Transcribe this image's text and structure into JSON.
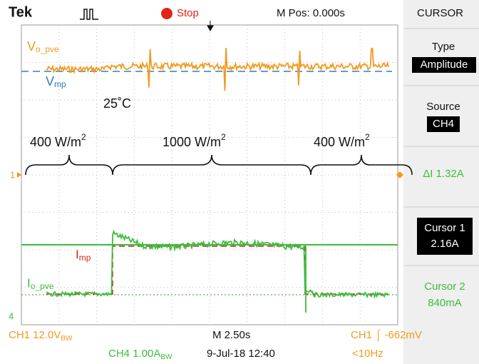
{
  "header": {
    "brand": "Tek",
    "state": "Stop",
    "position": "M Pos: 0.000s",
    "menu": "CURSOR"
  },
  "panel": {
    "type_label": "Type",
    "type_value": "Amplitude",
    "source_label": "Source",
    "source_value": "CH4",
    "delta": "ΔI 1.32A",
    "cursor1_label": "Cursor 1",
    "cursor1_value": "2.16A",
    "cursor2_label": "Cursor 2",
    "cursor2_value": "840mA"
  },
  "annotations": {
    "v_pve": {
      "main": "V",
      "sub": "o_pve"
    },
    "v_mp": {
      "main": "V",
      "sub": "mp"
    },
    "temperature": "25˚C",
    "irr1": {
      "main": "400 W/m",
      "sup": "2"
    },
    "irr2": {
      "main": "1000 W/m",
      "sup": "2"
    },
    "irr3": {
      "main": "400 W/m",
      "sup": "2"
    },
    "i_mp": {
      "main": "I",
      "sub": "mp"
    },
    "i_pve": {
      "main": "I",
      "sub": "o_pve"
    },
    "ch1_marker": "1",
    "ch4_marker": "4"
  },
  "footer": {
    "ch1": {
      "main": "CH1  12.0V",
      "sub": "BW"
    },
    "timebase": "M 2.50s",
    "trigger": "CH1 ⌠ -662mV",
    "ch4": {
      "main": "CH4  1.00A",
      "sub": "BW"
    },
    "date": "9-Jul-18 12:40",
    "freq": "<10Hz"
  }
}
